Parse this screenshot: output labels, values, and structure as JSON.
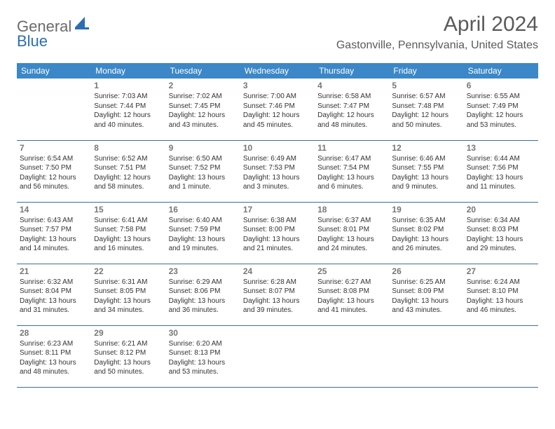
{
  "logo": {
    "text1": "General",
    "text2": "Blue",
    "shape_color": "#2a6fb6"
  },
  "title": "April 2024",
  "location": "Gastonville, Pennsylvania, United States",
  "colors": {
    "header_bg": "#3b87c8",
    "header_fg": "#ffffff",
    "row_border": "#3b6fa0",
    "daynum": "#777777",
    "body_text": "#333333",
    "title_color": "#5a5a5a"
  },
  "weekdays": [
    "Sunday",
    "Monday",
    "Tuesday",
    "Wednesday",
    "Thursday",
    "Friday",
    "Saturday"
  ],
  "weeks": [
    [
      null,
      {
        "n": "1",
        "sr": "Sunrise: 7:03 AM",
        "ss": "Sunset: 7:44 PM",
        "dl": "Daylight: 12 hours and 40 minutes."
      },
      {
        "n": "2",
        "sr": "Sunrise: 7:02 AM",
        "ss": "Sunset: 7:45 PM",
        "dl": "Daylight: 12 hours and 43 minutes."
      },
      {
        "n": "3",
        "sr": "Sunrise: 7:00 AM",
        "ss": "Sunset: 7:46 PM",
        "dl": "Daylight: 12 hours and 45 minutes."
      },
      {
        "n": "4",
        "sr": "Sunrise: 6:58 AM",
        "ss": "Sunset: 7:47 PM",
        "dl": "Daylight: 12 hours and 48 minutes."
      },
      {
        "n": "5",
        "sr": "Sunrise: 6:57 AM",
        "ss": "Sunset: 7:48 PM",
        "dl": "Daylight: 12 hours and 50 minutes."
      },
      {
        "n": "6",
        "sr": "Sunrise: 6:55 AM",
        "ss": "Sunset: 7:49 PM",
        "dl": "Daylight: 12 hours and 53 minutes."
      }
    ],
    [
      {
        "n": "7",
        "sr": "Sunrise: 6:54 AM",
        "ss": "Sunset: 7:50 PM",
        "dl": "Daylight: 12 hours and 56 minutes."
      },
      {
        "n": "8",
        "sr": "Sunrise: 6:52 AM",
        "ss": "Sunset: 7:51 PM",
        "dl": "Daylight: 12 hours and 58 minutes."
      },
      {
        "n": "9",
        "sr": "Sunrise: 6:50 AM",
        "ss": "Sunset: 7:52 PM",
        "dl": "Daylight: 13 hours and 1 minute."
      },
      {
        "n": "10",
        "sr": "Sunrise: 6:49 AM",
        "ss": "Sunset: 7:53 PM",
        "dl": "Daylight: 13 hours and 3 minutes."
      },
      {
        "n": "11",
        "sr": "Sunrise: 6:47 AM",
        "ss": "Sunset: 7:54 PM",
        "dl": "Daylight: 13 hours and 6 minutes."
      },
      {
        "n": "12",
        "sr": "Sunrise: 6:46 AM",
        "ss": "Sunset: 7:55 PM",
        "dl": "Daylight: 13 hours and 9 minutes."
      },
      {
        "n": "13",
        "sr": "Sunrise: 6:44 AM",
        "ss": "Sunset: 7:56 PM",
        "dl": "Daylight: 13 hours and 11 minutes."
      }
    ],
    [
      {
        "n": "14",
        "sr": "Sunrise: 6:43 AM",
        "ss": "Sunset: 7:57 PM",
        "dl": "Daylight: 13 hours and 14 minutes."
      },
      {
        "n": "15",
        "sr": "Sunrise: 6:41 AM",
        "ss": "Sunset: 7:58 PM",
        "dl": "Daylight: 13 hours and 16 minutes."
      },
      {
        "n": "16",
        "sr": "Sunrise: 6:40 AM",
        "ss": "Sunset: 7:59 PM",
        "dl": "Daylight: 13 hours and 19 minutes."
      },
      {
        "n": "17",
        "sr": "Sunrise: 6:38 AM",
        "ss": "Sunset: 8:00 PM",
        "dl": "Daylight: 13 hours and 21 minutes."
      },
      {
        "n": "18",
        "sr": "Sunrise: 6:37 AM",
        "ss": "Sunset: 8:01 PM",
        "dl": "Daylight: 13 hours and 24 minutes."
      },
      {
        "n": "19",
        "sr": "Sunrise: 6:35 AM",
        "ss": "Sunset: 8:02 PM",
        "dl": "Daylight: 13 hours and 26 minutes."
      },
      {
        "n": "20",
        "sr": "Sunrise: 6:34 AM",
        "ss": "Sunset: 8:03 PM",
        "dl": "Daylight: 13 hours and 29 minutes."
      }
    ],
    [
      {
        "n": "21",
        "sr": "Sunrise: 6:32 AM",
        "ss": "Sunset: 8:04 PM",
        "dl": "Daylight: 13 hours and 31 minutes."
      },
      {
        "n": "22",
        "sr": "Sunrise: 6:31 AM",
        "ss": "Sunset: 8:05 PM",
        "dl": "Daylight: 13 hours and 34 minutes."
      },
      {
        "n": "23",
        "sr": "Sunrise: 6:29 AM",
        "ss": "Sunset: 8:06 PM",
        "dl": "Daylight: 13 hours and 36 minutes."
      },
      {
        "n": "24",
        "sr": "Sunrise: 6:28 AM",
        "ss": "Sunset: 8:07 PM",
        "dl": "Daylight: 13 hours and 39 minutes."
      },
      {
        "n": "25",
        "sr": "Sunrise: 6:27 AM",
        "ss": "Sunset: 8:08 PM",
        "dl": "Daylight: 13 hours and 41 minutes."
      },
      {
        "n": "26",
        "sr": "Sunrise: 6:25 AM",
        "ss": "Sunset: 8:09 PM",
        "dl": "Daylight: 13 hours and 43 minutes."
      },
      {
        "n": "27",
        "sr": "Sunrise: 6:24 AM",
        "ss": "Sunset: 8:10 PM",
        "dl": "Daylight: 13 hours and 46 minutes."
      }
    ],
    [
      {
        "n": "28",
        "sr": "Sunrise: 6:23 AM",
        "ss": "Sunset: 8:11 PM",
        "dl": "Daylight: 13 hours and 48 minutes."
      },
      {
        "n": "29",
        "sr": "Sunrise: 6:21 AM",
        "ss": "Sunset: 8:12 PM",
        "dl": "Daylight: 13 hours and 50 minutes."
      },
      {
        "n": "30",
        "sr": "Sunrise: 6:20 AM",
        "ss": "Sunset: 8:13 PM",
        "dl": "Daylight: 13 hours and 53 minutes."
      },
      null,
      null,
      null,
      null
    ]
  ]
}
